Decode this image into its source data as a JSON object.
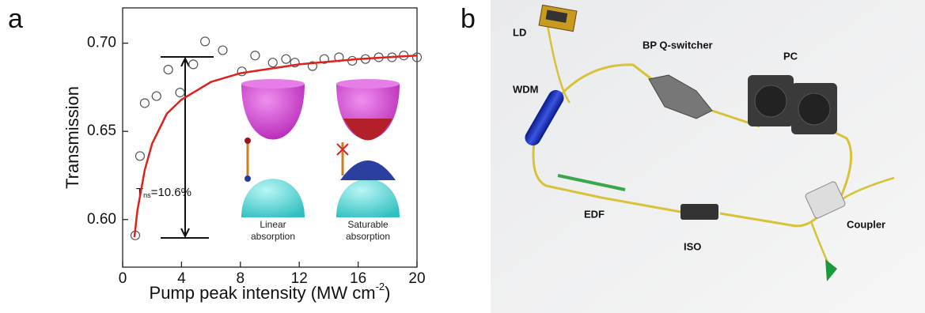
{
  "panel_labels": [
    "a",
    "b"
  ],
  "chart_data": {
    "type": "scatter",
    "xlabel": [
      "Pump peak intensity (MW cm",
      "-2",
      ")"
    ],
    "ylabel": "Transmission",
    "xlim": [
      0,
      20
    ],
    "xticks": [
      0,
      4,
      8,
      12,
      16,
      20
    ],
    "ylim": [
      0.573,
      0.72
    ],
    "yticks": [
      {
        "value": 0.6,
        "label": "0.60"
      },
      0.65,
      {
        "value": 0.7,
        "label": "0.70"
      }
    ],
    "annotation": [
      "T",
      "ns",
      "=10.6%"
    ],
    "inset_labels": [
      [
        "Linear",
        "absorption"
      ],
      [
        "Saturable",
        "absorption"
      ]
    ],
    "series": [
      {
        "style": "markers",
        "color": "#555555",
        "x": [
          0.86,
          1.18,
          1.5,
          2.3,
          3.1,
          3.9,
          4.8,
          5.6,
          6.8,
          8.1,
          9.0,
          10.2,
          11.1,
          11.7,
          12.9,
          13.7,
          14.7,
          15.6,
          16.5,
          17.4,
          18.3,
          19.1,
          20.0
        ],
        "values": [
          0.591,
          0.636,
          0.666,
          0.67,
          0.685,
          0.672,
          0.688,
          0.701,
          0.696,
          0.684,
          0.693,
          0.689,
          0.691,
          0.689,
          0.687,
          0.691,
          0.692,
          0.69,
          0.691,
          0.692,
          0.692,
          0.693,
          0.692
        ]
      },
      {
        "style": "line",
        "color": "#e0201c",
        "x": [
          0.8,
          1,
          1.5,
          2,
          3,
          4,
          6,
          8,
          12,
          16,
          20
        ],
        "values": [
          0.59,
          0.605,
          0.628,
          0.643,
          0.66,
          0.668,
          0.678,
          0.683,
          0.688,
          0.691,
          0.693
        ]
      }
    ]
  },
  "diagram": {
    "components": [
      "LD",
      "BP Q-switcher",
      "PC",
      "WDM",
      "EDF",
      "ISO",
      "Coupler"
    ]
  }
}
